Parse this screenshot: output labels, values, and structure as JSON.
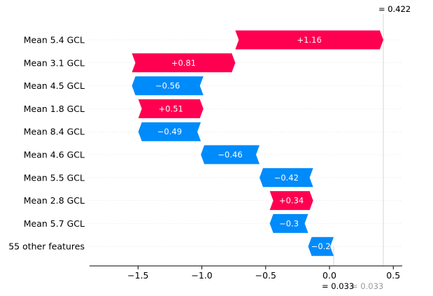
{
  "chart_data": {
    "type": "waterfall",
    "base_value_label": "= 0.033",
    "base_value_ghost": "= 0.033",
    "output_value_label": "= 0.422",
    "output_value_ghost": "0.422",
    "base_value": 0.033,
    "output_value": 0.422,
    "xlim": [
      -1.88,
      0.57
    ],
    "xticks": [
      {
        "value": -1.5,
        "label": "−1.5"
      },
      {
        "value": -1.0,
        "label": "−1.0"
      },
      {
        "value": -0.5,
        "label": "−0.5"
      },
      {
        "value": 0.0,
        "label": "0.0"
      },
      {
        "value": 0.5,
        "label": "0.5"
      }
    ],
    "features": [
      {
        "name": "Mean 5.4 GCL",
        "start": -0.738,
        "end": 0.422,
        "label": "+1.16",
        "sign": "pos"
      },
      {
        "name": "Mean 3.1 GCL",
        "start": -1.548,
        "end": -0.738,
        "label": "+0.81",
        "sign": "pos"
      },
      {
        "name": "Mean 4.5 GCL",
        "start": -0.988,
        "end": -1.548,
        "label": "−0.56",
        "sign": "neg"
      },
      {
        "name": "Mean 1.8 GCL",
        "start": -1.498,
        "end": -0.988,
        "label": "+0.51",
        "sign": "pos"
      },
      {
        "name": "Mean 8.4 GCL",
        "start": -1.008,
        "end": -1.498,
        "label": "−0.49",
        "sign": "neg"
      },
      {
        "name": "Mean 4.6 GCL",
        "start": -0.548,
        "end": -1.008,
        "label": "−0.46",
        "sign": "neg"
      },
      {
        "name": "Mean 5.5 GCL",
        "start": -0.128,
        "end": -0.548,
        "label": "−0.42",
        "sign": "neg"
      },
      {
        "name": "Mean 2.8 GCL",
        "start": -0.468,
        "end": -0.128,
        "label": "+0.34",
        "sign": "pos"
      },
      {
        "name": "Mean 5.7 GCL",
        "start": -0.167,
        "end": -0.468,
        "label": "−0.3",
        "sign": "neg"
      },
      {
        "name": "55 other features",
        "start": 0.033,
        "end": -0.167,
        "label": "−0.2",
        "sign": "neg"
      }
    ],
    "colors": {
      "positive": "#ff0051",
      "negative": "#008bfb"
    },
    "grid": false
  }
}
